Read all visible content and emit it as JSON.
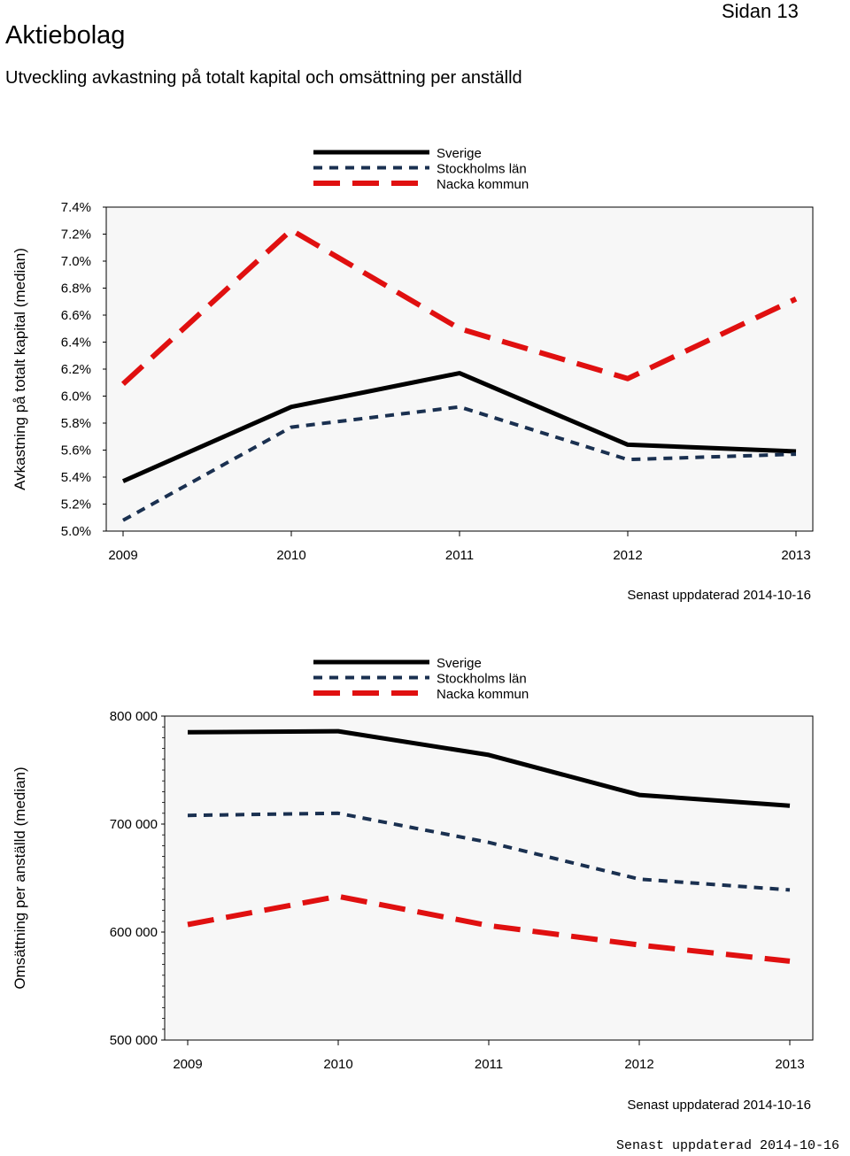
{
  "header": {
    "title": "Aktiebolag",
    "page_number": "Sidan 13",
    "subtitle": "Utveckling avkastning på totalt kapital och omsättning per anställd"
  },
  "footer": {
    "stamp": "Senast uppdaterad 2014-10-16"
  },
  "chart_data": [
    {
      "type": "line",
      "ylabel": "Avkastning på totalt kapital (median)",
      "xlabel": "",
      "x": [
        "2009",
        "2010",
        "2011",
        "2012",
        "2013"
      ],
      "ylim": [
        5.0,
        7.4
      ],
      "yticks": [
        5.0,
        5.2,
        5.4,
        5.6,
        5.8,
        6.0,
        6.2,
        6.4,
        6.6,
        6.8,
        7.0,
        7.2,
        7.4
      ],
      "ytick_labels": [
        "5.0%",
        "5.2%",
        "5.4%",
        "5.6%",
        "5.8%",
        "6.0%",
        "6.2%",
        "6.4%",
        "6.6%",
        "6.8%",
        "7.0%",
        "7.2%",
        "7.4%"
      ],
      "series": [
        {
          "name": "Sverige",
          "values": [
            5.37,
            5.92,
            6.17,
            5.64,
            5.59
          ],
          "color": "#000000",
          "style": "solid"
        },
        {
          "name": "Stockholms län",
          "values": [
            5.08,
            5.77,
            5.92,
            5.53,
            5.57
          ],
          "color": "#1a3050",
          "style": "dash-dot"
        },
        {
          "name": "Nacka kommun",
          "values": [
            6.09,
            7.23,
            6.5,
            6.13,
            6.72
          ],
          "color": "#e01010",
          "style": "long-dash"
        }
      ],
      "note": "Senast uppdaterad 2014-10-16",
      "legend": "top-center"
    },
    {
      "type": "line",
      "ylabel": "Omsättning per anställd (median)",
      "xlabel": "",
      "x": [
        "2009",
        "2010",
        "2011",
        "2012",
        "2013"
      ],
      "ylim": [
        500000,
        800000
      ],
      "yticks": [
        500000,
        600000,
        700000,
        800000
      ],
      "ytick_labels": [
        "500 000",
        "600 000",
        "700 000",
        "800 000"
      ],
      "series": [
        {
          "name": "Sverige",
          "values": [
            785000,
            786000,
            764000,
            727000,
            717000
          ],
          "color": "#000000",
          "style": "solid"
        },
        {
          "name": "Stockholms län",
          "values": [
            708000,
            710000,
            683000,
            649000,
            639000
          ],
          "color": "#1a3050",
          "style": "dash-dot"
        },
        {
          "name": "Nacka kommun",
          "values": [
            607000,
            633000,
            606000,
            588000,
            573000
          ],
          "color": "#e01010",
          "style": "long-dash"
        }
      ],
      "note": "Senast uppdaterad 2014-10-16",
      "legend": "top-center"
    }
  ]
}
